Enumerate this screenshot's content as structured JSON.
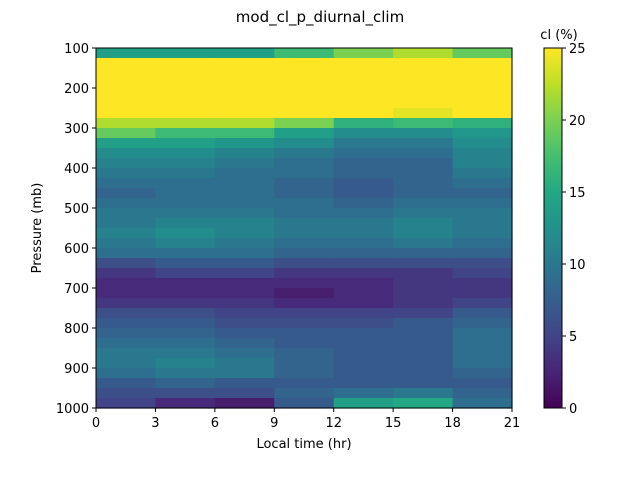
{
  "chart_data": {
    "type": "heatmap",
    "title": "mod_cl_p_diurnal_clim",
    "xlabel": "Local time (hr)",
    "ylabel": "Pressure (mb)",
    "colorbar_label": "cl (%)",
    "colormap": "viridis",
    "xlim": [
      0,
      21
    ],
    "ylim": [
      1000,
      100
    ],
    "clim": [
      0,
      25
    ],
    "x_ticks": [
      "0",
      "3",
      "6",
      "9",
      "12",
      "15",
      "18",
      "21"
    ],
    "y_ticks": [
      "100",
      "200",
      "300",
      "400",
      "500",
      "600",
      "700",
      "800",
      "900",
      "1000"
    ],
    "colorbar_ticks": [
      "0",
      "5",
      "10",
      "15",
      "20",
      "25"
    ],
    "x_edges": [
      0,
      3,
      6,
      9,
      12,
      15,
      18,
      21
    ],
    "y_edges": [
      100,
      125,
      150,
      175,
      200,
      225,
      250,
      275,
      300,
      325,
      350,
      375,
      400,
      425,
      450,
      475,
      500,
      525,
      550,
      575,
      600,
      625,
      650,
      675,
      700,
      725,
      750,
      775,
      800,
      825,
      850,
      875,
      900,
      925,
      950,
      975,
      1000
    ],
    "values": [
      [
        14,
        14,
        14,
        17,
        20,
        22,
        19
      ],
      [
        25,
        25,
        25,
        25,
        25,
        25,
        25
      ],
      [
        25,
        25,
        25,
        25,
        25,
        25,
        25
      ],
      [
        25,
        25,
        25,
        25,
        25,
        25,
        25
      ],
      [
        25,
        25,
        25,
        25,
        25,
        25,
        25
      ],
      [
        25,
        25,
        25,
        25,
        25,
        25,
        25
      ],
      [
        25,
        25,
        25,
        25,
        25,
        24,
        25
      ],
      [
        22,
        22,
        22,
        20,
        16,
        17,
        16
      ],
      [
        19,
        17,
        17,
        14,
        12,
        12,
        13
      ],
      [
        14,
        14,
        13,
        12,
        10,
        10,
        12
      ],
      [
        12,
        12,
        11,
        10,
        9,
        9,
        11
      ],
      [
        11,
        11,
        10,
        9,
        8,
        8,
        11
      ],
      [
        10,
        10,
        9,
        9,
        8,
        8,
        10
      ],
      [
        9,
        9,
        9,
        8,
        7,
        8,
        9
      ],
      [
        8,
        9,
        9,
        8,
        7,
        8,
        8
      ],
      [
        9,
        9,
        9,
        9,
        8,
        9,
        9
      ],
      [
        10,
        10,
        10,
        9,
        9,
        10,
        10
      ],
      [
        10,
        11,
        11,
        10,
        10,
        11,
        10
      ],
      [
        11,
        12,
        11,
        10,
        10,
        11,
        10
      ],
      [
        10,
        11,
        10,
        9,
        9,
        10,
        9
      ],
      [
        9,
        9,
        9,
        8,
        8,
        8,
        8
      ],
      [
        6,
        7,
        7,
        6,
        6,
        6,
        6
      ],
      [
        4,
        5,
        5,
        4,
        4,
        4,
        5
      ],
      [
        3,
        3,
        3,
        3,
        3,
        4,
        4
      ],
      [
        3,
        3,
        3,
        2,
        3,
        4,
        4
      ],
      [
        4,
        4,
        4,
        3,
        3,
        4,
        5
      ],
      [
        6,
        6,
        5,
        5,
        5,
        5,
        7
      ],
      [
        7,
        7,
        6,
        6,
        6,
        7,
        8
      ],
      [
        8,
        8,
        7,
        7,
        7,
        7,
        9
      ],
      [
        9,
        9,
        8,
        7,
        7,
        7,
        9
      ],
      [
        10,
        10,
        9,
        8,
        7,
        7,
        9
      ],
      [
        10,
        11,
        10,
        8,
        7,
        7,
        9
      ],
      [
        9,
        10,
        10,
        8,
        7,
        7,
        8
      ],
      [
        7,
        8,
        7,
        7,
        7,
        7,
        7
      ],
      [
        6,
        6,
        6,
        8,
        9,
        10,
        8
      ],
      [
        5,
        3,
        2,
        7,
        14,
        15,
        9
      ]
    ]
  }
}
